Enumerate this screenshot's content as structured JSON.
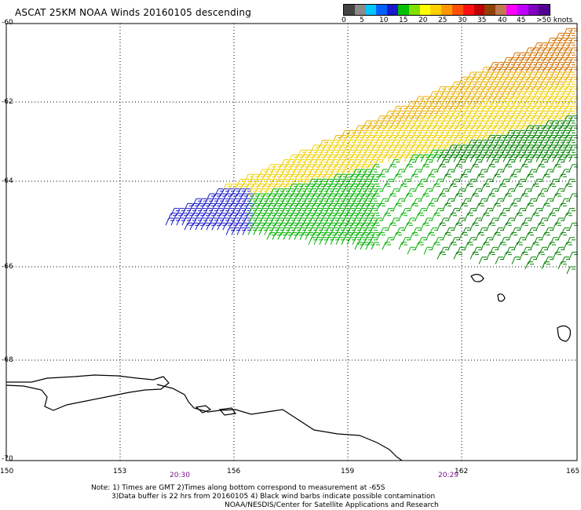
{
  "title": "ASCAT 25KM NOAA Winds 20160105 descending",
  "legend": {
    "colors": [
      "#444444",
      "#8a8a8a",
      "#00c8ff",
      "#0060ff",
      "#1a1acc",
      "#00c000",
      "#80e000",
      "#ffff00",
      "#ffd000",
      "#ff9800",
      "#ff5000",
      "#ff1010",
      "#c00000",
      "#904000",
      "#c07850",
      "#ff00ff",
      "#c000ff",
      "#8000c0",
      "#500090"
    ],
    "ticks": [
      "0",
      "5",
      "10",
      "15",
      "20",
      "25",
      "30",
      "35",
      "40",
      "45",
      ">50 knots"
    ]
  },
  "axes": {
    "lat_labels": [
      "-60",
      "-62",
      "-64",
      "-66",
      "-68",
      "-70"
    ],
    "lon_labels": [
      "150",
      "153",
      "156",
      "159",
      "162",
      "165"
    ]
  },
  "times": {
    "start": "20:30",
    "end": "20:29"
  },
  "notes": {
    "line1": "Note: 1) Times are GMT 2)Times along bottom correspond to measurement at -65S",
    "line2": "3)Data buffer is 22 hrs from 20160105 4) Black wind barbs indicate possible contamination",
    "line3": "NOAA/NESDIS/Center for Satellite Applications and Research"
  },
  "colors": {
    "blue": "#1a1acc",
    "green": "#00b000",
    "dark_green": "#008000",
    "yellow": "#f0d000",
    "gold": "#e8b000",
    "orange": "#d07000",
    "red": "#c02000"
  }
}
